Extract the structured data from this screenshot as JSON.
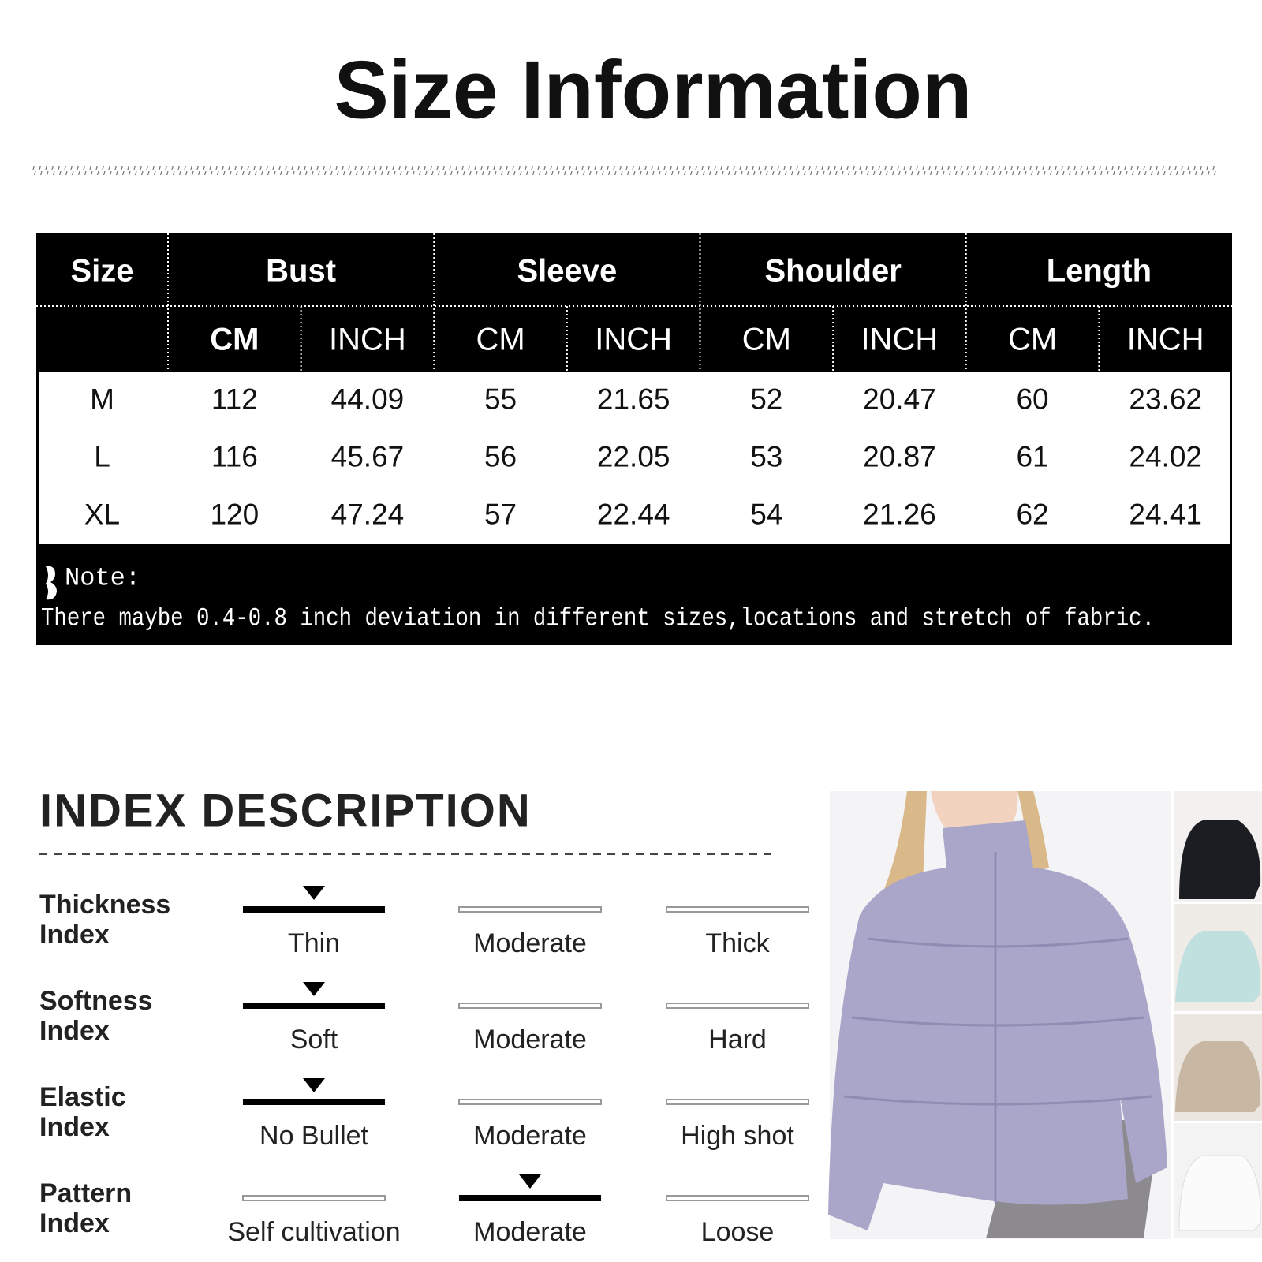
{
  "title": "Size Information",
  "size_table": {
    "headers": [
      "Size",
      "Bust",
      "Sleeve",
      "Shoulder",
      "Length"
    ],
    "units": [
      "CM",
      "INCH",
      "CM",
      "INCH",
      "CM",
      "INCH",
      "CM",
      "INCH"
    ],
    "rows": [
      [
        "M",
        "112",
        "44.09",
        "55",
        "21.65",
        "52",
        "20.47",
        "60",
        "23.62"
      ],
      [
        "L",
        "116",
        "45.67",
        "56",
        "22.05",
        "53",
        "20.87",
        "61",
        "24.02"
      ],
      [
        "XL",
        "120",
        "47.24",
        "57",
        "22.44",
        "54",
        "21.26",
        "62",
        "24.41"
      ]
    ],
    "note_label": "Note:",
    "note": "There maybe 0.4-0.8 inch deviation in different sizes,locations and stretch of fabric."
  },
  "index": {
    "title": "INDEX DESCRIPTION",
    "items": [
      {
        "label": [
          "Thickness",
          "Index"
        ],
        "options": [
          "Thin",
          "Moderate",
          "Thick"
        ],
        "selected": 0
      },
      {
        "label": [
          "Softness",
          "Index"
        ],
        "options": [
          "Soft",
          "Moderate",
          "Hard"
        ],
        "selected": 0
      },
      {
        "label": [
          "Elastic",
          "Index"
        ],
        "options": [
          "No Bullet",
          "Moderate",
          "High shot"
        ],
        "selected": 0
      },
      {
        "label": [
          "Pattern",
          "Index"
        ],
        "options": [
          "Self cultivation",
          "Moderate",
          "Loose"
        ],
        "selected": 1
      }
    ]
  }
}
